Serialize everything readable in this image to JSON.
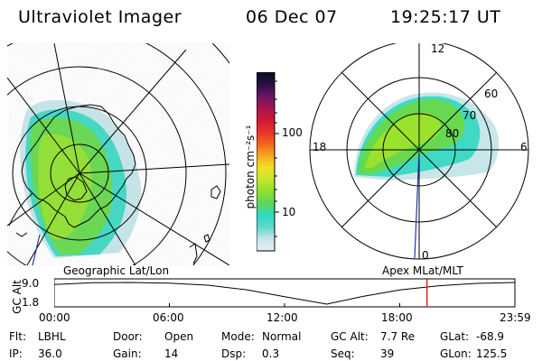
{
  "header": {
    "instrument": "Ultraviolet Imager",
    "date": "06 Dec 07",
    "time": "19:25:17 UT"
  },
  "colorbar": {
    "label": "photon cm⁻²s⁻¹",
    "tick_labels": [
      "100",
      "10"
    ],
    "stops": [
      "#e8eef2",
      "#c6e6ea",
      "#5fd8c9",
      "#2fd9c2",
      "#5fd65a",
      "#8ee02a",
      "#c4e82b",
      "#f3df24",
      "#f6a81d",
      "#f0641d",
      "#e8322a",
      "#cf1935",
      "#a3174d",
      "#6a1563",
      "#2a0f42",
      "#0a0a1e"
    ]
  },
  "panels": {
    "geo_label": "Geographic Lat/Lon",
    "mag_label": "Apex MLat/MLT",
    "mlt_labels": {
      "top": "12",
      "bottom": "0",
      "left": "18",
      "right": "6"
    },
    "mlat_labels": [
      "60",
      "70",
      "80"
    ]
  },
  "timeline": {
    "ylabel": "GC Alt",
    "yticks": [
      "9.0",
      "1.8"
    ],
    "xticks": [
      "00:00",
      "06:00",
      "12:00",
      "18:00",
      "23:59"
    ]
  },
  "info": {
    "row1": [
      {
        "key": "Flt:",
        "val": "LBHL"
      },
      {
        "key": "Door:",
        "val": "Open"
      },
      {
        "key": "Mode:",
        "val": "Normal"
      },
      {
        "key": "GC Alt:",
        "val": "7.7 Re"
      },
      {
        "key": "GLat:",
        "val": "-68.9"
      }
    ],
    "row2": [
      {
        "key": "IP:",
        "val": "36.0"
      },
      {
        "key": "Gain:",
        "val": "14"
      },
      {
        "key": "Dsp:",
        "val": "0.3"
      },
      {
        "key": "Seq:",
        "val": "39"
      },
      {
        "key": "GLon:",
        "val": "125.5"
      }
    ]
  },
  "chart_data": [
    {
      "type": "heatmap",
      "title": "Ultraviolet Imager",
      "subtitle": "Geographic Lat/Lon",
      "colorbar_label": "photon cm⁻²s⁻¹",
      "color_scale": "log",
      "colorbar_ticks": [
        10,
        100
      ]
    },
    {
      "type": "heatmap",
      "subtitle": "Apex MLat/MLT",
      "projection": "polar",
      "mlt_ticks": [
        0,
        6,
        12,
        18
      ],
      "mlat_ticks": [
        60,
        70,
        80
      ]
    },
    {
      "type": "line",
      "ylabel": "GC Alt",
      "yticks": [
        1.8,
        9.0
      ],
      "xticks": [
        "00:00",
        "06:00",
        "12:00",
        "18:00",
        "23:59"
      ],
      "x_hours": [
        0,
        2,
        4,
        6,
        8,
        10,
        12,
        14.2,
        16,
        18,
        20,
        22,
        24
      ],
      "y": [
        8.3,
        8.9,
        9.0,
        8.8,
        8.1,
        6.6,
        4.3,
        1.8,
        4.3,
        6.5,
        7.9,
        8.7,
        9.0
      ],
      "current_time_hour": 19.42
    }
  ]
}
